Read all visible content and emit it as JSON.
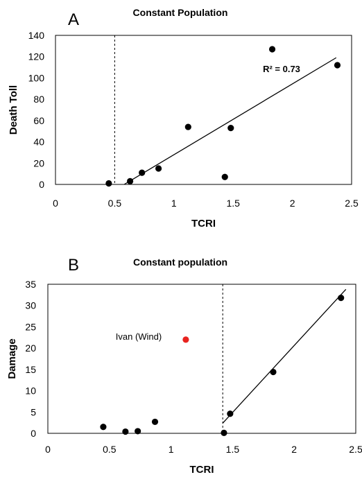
{
  "chart_data": [
    {
      "type": "scatter",
      "panel_label": "A",
      "title": "Constant Population",
      "xlabel": "TCRI",
      "ylabel": "Death Toll",
      "xlim": [
        0,
        2.5
      ],
      "ylim": [
        0,
        140
      ],
      "xticks": [
        0,
        0.5,
        1,
        1.5,
        2,
        2.5
      ],
      "yticks": [
        0,
        20,
        40,
        60,
        80,
        100,
        120,
        140
      ],
      "points": [
        {
          "x": 0.45,
          "y": 1
        },
        {
          "x": 0.63,
          "y": 3
        },
        {
          "x": 0.73,
          "y": 11
        },
        {
          "x": 0.87,
          "y": 15
        },
        {
          "x": 1.12,
          "y": 54
        },
        {
          "x": 1.43,
          "y": 7
        },
        {
          "x": 1.48,
          "y": 53
        },
        {
          "x": 1.83,
          "y": 127
        },
        {
          "x": 2.38,
          "y": 112
        }
      ],
      "point_color": "#000000",
      "fit_line": {
        "x": [
          0.58,
          2.37
        ],
        "y": [
          0,
          119
        ]
      },
      "threshold_x": 0.5,
      "annotation": "R² = 0.73",
      "grid": false
    },
    {
      "type": "scatter",
      "panel_label": "B",
      "title": "Constant population",
      "xlabel": "TCRI",
      "ylabel": "Damage",
      "xlim": [
        0,
        2.5
      ],
      "ylim": [
        0,
        35
      ],
      "xticks": [
        0,
        0.5,
        1,
        1.5,
        2,
        2.5
      ],
      "yticks": [
        0,
        5,
        10,
        15,
        20,
        25,
        30,
        35
      ],
      "points": [
        {
          "x": 0.45,
          "y": 1.5
        },
        {
          "x": 0.63,
          "y": 0.4
        },
        {
          "x": 0.73,
          "y": 0.5
        },
        {
          "x": 0.87,
          "y": 2.7
        },
        {
          "x": 1.43,
          "y": 0.1
        },
        {
          "x": 1.48,
          "y": 4.6
        },
        {
          "x": 1.83,
          "y": 14.4
        },
        {
          "x": 2.38,
          "y": 31.8
        }
      ],
      "point_color": "#000000",
      "highlight": {
        "x": 1.12,
        "y": 22,
        "label": "Ivan (Wind)",
        "color": "#e8231f"
      },
      "fit_line": {
        "x": [
          1.42,
          2.42
        ],
        "y": [
          2.4,
          33.8
        ]
      },
      "threshold_x": 1.42,
      "grid": false
    }
  ]
}
